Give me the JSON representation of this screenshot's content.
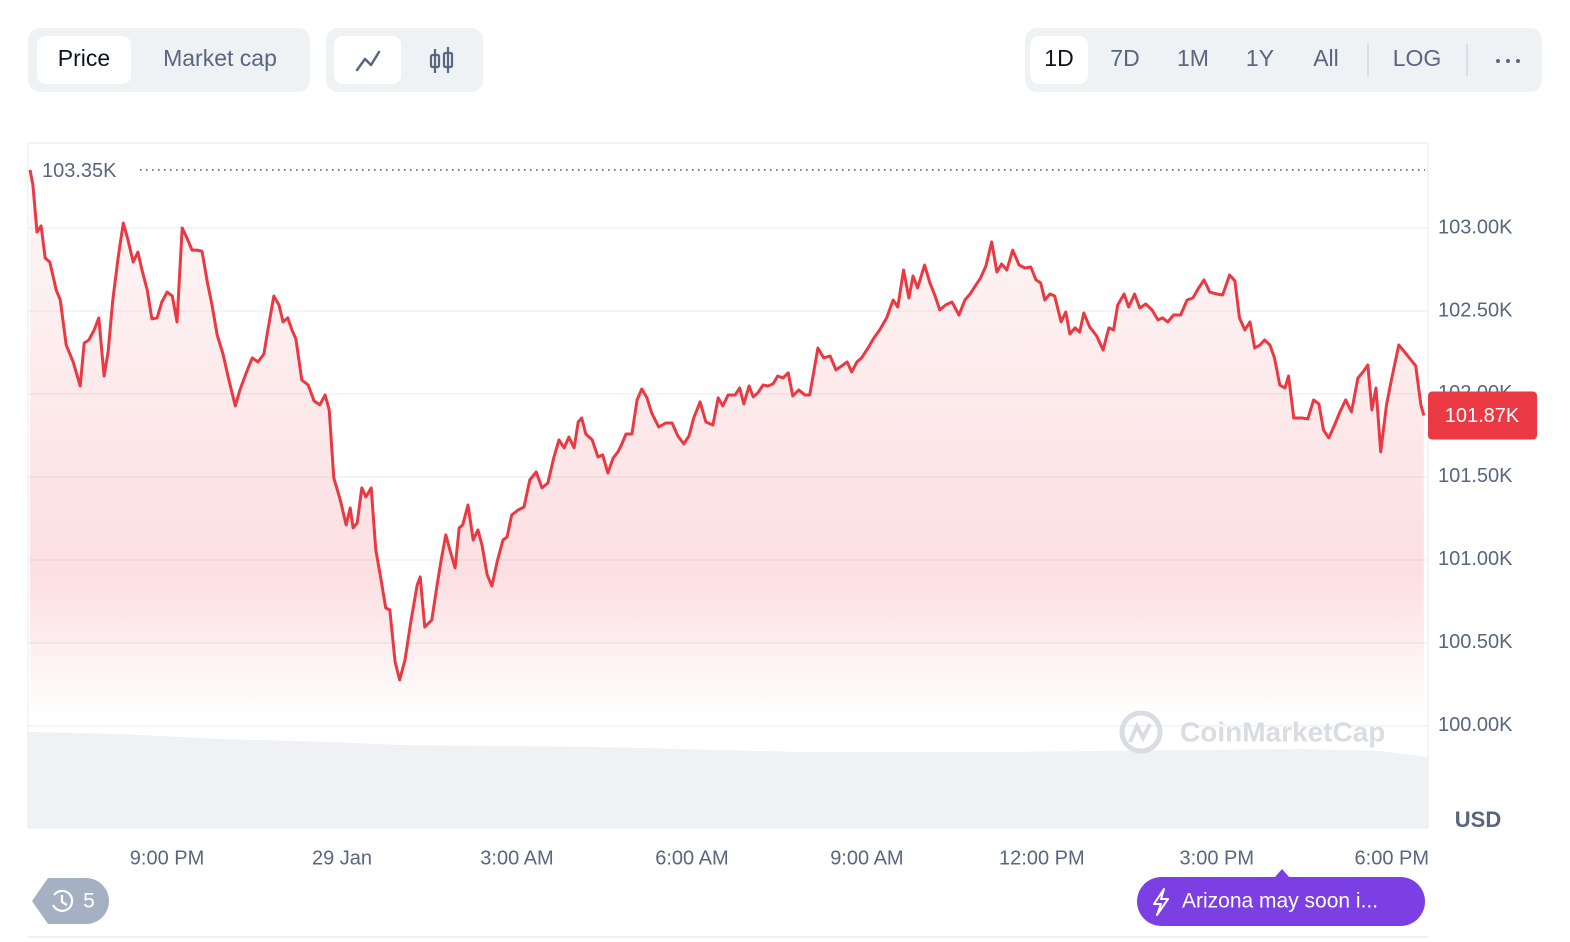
{
  "toolbar": {
    "metric_tabs": [
      "Price",
      "Market cap"
    ],
    "ranges": [
      "1D",
      "7D",
      "1M",
      "1Y",
      "All"
    ],
    "scale": "LOG"
  },
  "chart_data": {
    "type": "line",
    "color": "#ea3943",
    "grid": true,
    "x": [
      -5.35,
      -5.3,
      -5.23,
      -5.16,
      -5.09,
      -5.01,
      -4.9,
      -4.83,
      -4.73,
      -4.61,
      -4.49,
      -4.42,
      -4.34,
      -4.25,
      -4.17,
      -4.08,
      -4.01,
      -3.93,
      -3.84,
      -3.75,
      -3.67,
      -3.58,
      -3.5,
      -3.43,
      -3.34,
      -3.26,
      -3.17,
      -3.09,
      -3.0,
      -2.91,
      -2.83,
      -2.74,
      -2.66,
      -2.57,
      -2.49,
      -2.4,
      -2.31,
      -2.23,
      -2.14,
      -2.04,
      -1.94,
      -1.83,
      -1.75,
      -1.65,
      -1.54,
      -1.44,
      -1.34,
      -1.27,
      -1.17,
      -1.08,
      -1.01,
      -0.93,
      -0.86,
      -0.79,
      -0.69,
      -0.58,
      -0.48,
      -0.38,
      -0.29,
      -0.22,
      -0.14,
      -0.03,
      0.07,
      0.14,
      0.19,
      0.26,
      0.34,
      0.41,
      0.5,
      0.58,
      0.67,
      0.75,
      0.82,
      0.91,
      0.99,
      1.08,
      1.18,
      1.29,
      1.34,
      1.42,
      1.54,
      1.63,
      1.7,
      1.78,
      1.85,
      1.94,
      2.01,
      2.07,
      2.16,
      2.25,
      2.33,
      2.4,
      2.49,
      2.57,
      2.66,
      2.76,
      2.83,
      2.91,
      3.02,
      3.12,
      3.22,
      3.33,
      3.43,
      3.53,
      3.63,
      3.72,
      3.81,
      3.89,
      3.98,
      4.05,
      4.11,
      4.18,
      4.29,
      4.39,
      4.47,
      4.56,
      4.65,
      4.73,
      4.8,
      4.87,
      4.97,
      5.06,
      5.14,
      5.23,
      5.31,
      5.43,
      5.55,
      5.66,
      5.76,
      5.86,
      5.95,
      6.03,
      6.14,
      6.24,
      6.36,
      6.45,
      6.53,
      6.62,
      6.74,
      6.82,
      6.89,
      6.98,
      7.05,
      7.13,
      7.22,
      7.3,
      7.39,
      7.47,
      7.56,
      7.65,
      7.73,
      7.83,
      7.94,
      8.02,
      8.16,
      8.26,
      8.37,
      8.47,
      8.57,
      8.66,
      8.74,
      8.83,
      8.91,
      9.02,
      9.12,
      9.22,
      9.34,
      9.45,
      9.53,
      9.63,
      9.72,
      9.79,
      9.87,
      9.99,
      10.08,
      10.17,
      10.25,
      10.35,
      10.46,
      10.58,
      10.68,
      10.77,
      10.87,
      10.95,
      11.04,
      11.14,
      11.23,
      11.31,
      11.4,
      11.5,
      11.61,
      11.71,
      11.81,
      11.9,
      11.98,
      12.05,
      12.14,
      12.22,
      12.33,
      12.41,
      12.48,
      12.57,
      12.65,
      12.72,
      12.82,
      12.94,
      13.05,
      13.15,
      13.23,
      13.3,
      13.41,
      13.49,
      13.59,
      13.68,
      13.78,
      13.89,
      13.99,
      14.07,
      14.16,
      14.26,
      14.38,
      14.49,
      14.59,
      14.69,
      14.78,
      14.88,
      15.0,
      15.1,
      15.22,
      15.31,
      15.39,
      15.48,
      15.57,
      15.65,
      15.74,
      15.82,
      15.91,
      15.99,
      16.08,
      16.17,
      16.23,
      16.32,
      16.46,
      16.56,
      16.66,
      16.75,
      16.83,
      16.92,
      17.02,
      17.11,
      17.21,
      17.31,
      17.42,
      17.52,
      17.59,
      17.66,
      17.73,
      17.81,
      17.91,
      18.0,
      18.12,
      18.22,
      18.33,
      18.41,
      18.5,
      18.55
    ],
    "values": [
      103350,
      103259,
      102976,
      103012,
      102819,
      102795,
      102627,
      102566,
      102295,
      102193,
      102048,
      102307,
      102325,
      102386,
      102458,
      102108,
      102253,
      102566,
      102819,
      103030,
      102928,
      102795,
      102855,
      102747,
      102627,
      102452,
      102458,
      102554,
      102614,
      102590,
      102434,
      103000,
      102940,
      102867,
      102867,
      102860,
      102675,
      102536,
      102355,
      102241,
      102084,
      101928,
      102024,
      102120,
      102217,
      102193,
      102241,
      102386,
      102590,
      102536,
      102434,
      102458,
      102386,
      102331,
      102084,
      102054,
      101958,
      101934,
      101994,
      101904,
      101494,
      101361,
      101211,
      101313,
      101193,
      101223,
      101434,
      101380,
      101434,
      101060,
      100880,
      100711,
      100699,
      100386,
      100277,
      100398,
      100627,
      100849,
      100898,
      100596,
      100639,
      100849,
      101000,
      101151,
      101060,
      100952,
      101193,
      101211,
      101331,
      101120,
      101181,
      101090,
      100910,
      100843,
      100988,
      101120,
      101139,
      101271,
      101301,
      101319,
      101482,
      101530,
      101434,
      101464,
      101614,
      101723,
      101675,
      101741,
      101675,
      101831,
      101855,
      101759,
      101723,
      101620,
      101633,
      101524,
      101614,
      101651,
      101699,
      101759,
      101759,
      101964,
      102030,
      101976,
      101886,
      101801,
      101825,
      101825,
      101747,
      101699,
      101747,
      101855,
      101952,
      101831,
      101813,
      101976,
      101928,
      101994,
      101994,
      102036,
      101940,
      102048,
      101982,
      102006,
      102054,
      102048,
      102060,
      102108,
      102096,
      102127,
      101988,
      102024,
      101994,
      101994,
      102277,
      102217,
      102229,
      102145,
      102169,
      102193,
      102133,
      102193,
      102217,
      102277,
      102337,
      102386,
      102458,
      102566,
      102524,
      102747,
      102578,
      102711,
      102639,
      102777,
      102669,
      102590,
      102506,
      102536,
      102554,
      102476,
      102566,
      102602,
      102657,
      102699,
      102771,
      102916,
      102735,
      102783,
      102747,
      102867,
      102777,
      102759,
      102765,
      102687,
      102669,
      102566,
      102602,
      102590,
      102434,
      102494,
      102361,
      102398,
      102373,
      102488,
      102404,
      102349,
      102265,
      102398,
      102386,
      102536,
      102602,
      102524,
      102602,
      102518,
      102542,
      102506,
      102446,
      102458,
      102434,
      102476,
      102476,
      102566,
      102578,
      102639,
      102687,
      102614,
      102602,
      102596,
      102717,
      102681,
      102458,
      102386,
      102434,
      102277,
      102295,
      102325,
      102295,
      102217,
      102054,
      102036,
      102108,
      101855,
      101855,
      101850,
      101964,
      101940,
      101783,
      101735,
      101813,
      101892,
      101964,
      101892,
      102096,
      102139,
      102175,
      101904,
      102036,
      101651,
      101934,
      102096,
      102295,
      102253,
      102205,
      102169,
      101934,
      101870
    ],
    "xlim": [
      -5.35,
      18.57
    ],
    "xticks": [
      {
        "value": -3,
        "label": "9:00 PM"
      },
      {
        "value": 0,
        "label": "29 Jan"
      },
      {
        "value": 3,
        "label": "3:00 AM"
      },
      {
        "value": 6,
        "label": "6:00 AM"
      },
      {
        "value": 9,
        "label": "9:00 AM"
      },
      {
        "value": 12,
        "label": "12:00 PM"
      },
      {
        "value": 15,
        "label": "3:00 PM"
      },
      {
        "value": 18,
        "label": "6:00 PM"
      }
    ],
    "ylim": [
      99385,
      103512
    ],
    "yticks": [
      {
        "value": 100000,
        "label": "100.00K"
      },
      {
        "value": 100500,
        "label": "100.50K"
      },
      {
        "value": 101000,
        "label": "101.00K"
      },
      {
        "value": 101500,
        "label": "101.50K"
      },
      {
        "value": 102000,
        "label": "102.00K"
      },
      {
        "value": 102500,
        "label": "102.50K"
      },
      {
        "value": 103000,
        "label": "103.00K"
      }
    ],
    "max_label": {
      "value": 103350,
      "label": "103.35K"
    },
    "last_label": {
      "value": 101870,
      "label": "101.87K"
    },
    "unit_label": "USD",
    "watermark": "CoinMarketCap"
  },
  "history_badge": 5,
  "news": "Arizona may soon i..."
}
